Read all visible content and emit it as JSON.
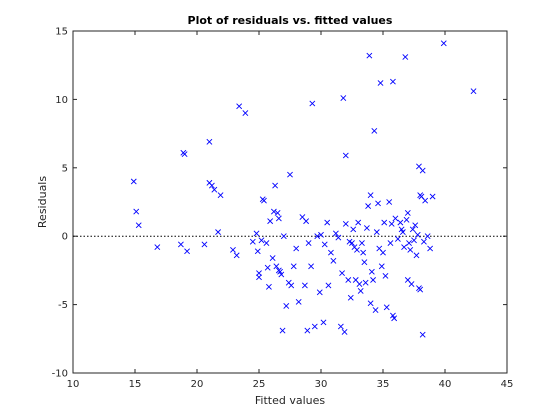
{
  "chart_data": {
    "type": "scatter",
    "title": "Plot of residuals vs. fitted values",
    "xlabel": "Fitted values",
    "ylabel": "Residuals",
    "xlim": [
      10,
      45
    ],
    "ylim": [
      -10,
      15
    ],
    "xticks": [
      10,
      15,
      20,
      25,
      30,
      35,
      40,
      45
    ],
    "yticks": [
      -10,
      -5,
      0,
      5,
      10,
      15
    ],
    "grid": false,
    "marker": "x",
    "marker_color": "#0000ff",
    "reference_line": {
      "y": 0,
      "style": "dotted",
      "color": "#000000"
    },
    "points": [
      {
        "x": 14.9,
        "y": 4.0
      },
      {
        "x": 15.1,
        "y": 1.8
      },
      {
        "x": 15.3,
        "y": 0.8
      },
      {
        "x": 16.8,
        "y": -0.8
      },
      {
        "x": 18.7,
        "y": -0.6
      },
      {
        "x": 18.9,
        "y": 6.1
      },
      {
        "x": 19.0,
        "y": 6.0
      },
      {
        "x": 19.2,
        "y": -1.1
      },
      {
        "x": 20.6,
        "y": -0.6
      },
      {
        "x": 21.0,
        "y": 6.9
      },
      {
        "x": 21.0,
        "y": 3.9
      },
      {
        "x": 21.2,
        "y": 3.7
      },
      {
        "x": 21.4,
        "y": 3.4
      },
      {
        "x": 21.7,
        "y": 0.3
      },
      {
        "x": 21.9,
        "y": 3.0
      },
      {
        "x": 22.9,
        "y": -1.0
      },
      {
        "x": 23.2,
        "y": -1.4
      },
      {
        "x": 23.4,
        "y": 9.5
      },
      {
        "x": 23.9,
        "y": 9.0
      },
      {
        "x": 24.5,
        "y": -0.4
      },
      {
        "x": 24.8,
        "y": 0.2
      },
      {
        "x": 24.9,
        "y": -1.1
      },
      {
        "x": 25.0,
        "y": -2.7
      },
      {
        "x": 25.0,
        "y": -3.0
      },
      {
        "x": 25.2,
        "y": -0.3
      },
      {
        "x": 25.3,
        "y": 2.7
      },
      {
        "x": 25.4,
        "y": 2.6
      },
      {
        "x": 25.6,
        "y": -0.5
      },
      {
        "x": 25.7,
        "y": -2.3
      },
      {
        "x": 25.8,
        "y": -3.7
      },
      {
        "x": 25.9,
        "y": 1.1
      },
      {
        "x": 26.1,
        "y": -1.6
      },
      {
        "x": 26.2,
        "y": 1.8
      },
      {
        "x": 26.3,
        "y": 3.7
      },
      {
        "x": 26.4,
        "y": -2.2
      },
      {
        "x": 26.5,
        "y": 1.7
      },
      {
        "x": 26.6,
        "y": 1.3
      },
      {
        "x": 26.6,
        "y": -2.5
      },
      {
        "x": 26.7,
        "y": -2.6
      },
      {
        "x": 26.8,
        "y": -2.8
      },
      {
        "x": 26.9,
        "y": -6.9
      },
      {
        "x": 27.0,
        "y": 0.0
      },
      {
        "x": 27.2,
        "y": -5.1
      },
      {
        "x": 27.4,
        "y": -3.4
      },
      {
        "x": 27.5,
        "y": 4.5
      },
      {
        "x": 27.6,
        "y": -3.6
      },
      {
        "x": 27.8,
        "y": -2.2
      },
      {
        "x": 28.0,
        "y": -0.9
      },
      {
        "x": 28.2,
        "y": -4.8
      },
      {
        "x": 28.5,
        "y": 1.4
      },
      {
        "x": 28.7,
        "y": -3.6
      },
      {
        "x": 28.8,
        "y": 1.1
      },
      {
        "x": 28.9,
        "y": -6.9
      },
      {
        "x": 29.0,
        "y": -0.5
      },
      {
        "x": 29.2,
        "y": -2.2
      },
      {
        "x": 29.3,
        "y": 9.7
      },
      {
        "x": 29.5,
        "y": -6.6
      },
      {
        "x": 29.7,
        "y": 0.0
      },
      {
        "x": 29.9,
        "y": -4.1
      },
      {
        "x": 30.0,
        "y": 0.1
      },
      {
        "x": 30.2,
        "y": -6.3
      },
      {
        "x": 30.3,
        "y": -0.6
      },
      {
        "x": 30.5,
        "y": 1.0
      },
      {
        "x": 30.6,
        "y": -3.6
      },
      {
        "x": 30.8,
        "y": -1.2
      },
      {
        "x": 31.0,
        "y": -1.8
      },
      {
        "x": 31.2,
        "y": 0.2
      },
      {
        "x": 31.4,
        "y": -0.1
      },
      {
        "x": 31.6,
        "y": -6.6
      },
      {
        "x": 31.7,
        "y": -2.7
      },
      {
        "x": 31.8,
        "y": 10.1
      },
      {
        "x": 31.9,
        "y": -7.0
      },
      {
        "x": 32.0,
        "y": 5.9
      },
      {
        "x": 32.0,
        "y": 0.9
      },
      {
        "x": 32.2,
        "y": -3.2
      },
      {
        "x": 32.3,
        "y": -0.4
      },
      {
        "x": 32.4,
        "y": -4.5
      },
      {
        "x": 32.5,
        "y": -0.5
      },
      {
        "x": 32.6,
        "y": 0.5
      },
      {
        "x": 32.7,
        "y": -0.8
      },
      {
        "x": 32.8,
        "y": -3.2
      },
      {
        "x": 32.9,
        "y": -1.0
      },
      {
        "x": 33.0,
        "y": 1.0
      },
      {
        "x": 33.1,
        "y": -3.5
      },
      {
        "x": 33.2,
        "y": -4.0
      },
      {
        "x": 33.3,
        "y": -0.5
      },
      {
        "x": 33.4,
        "y": -1.2
      },
      {
        "x": 33.5,
        "y": -1.9
      },
      {
        "x": 33.6,
        "y": -3.4
      },
      {
        "x": 33.7,
        "y": 0.6
      },
      {
        "x": 33.8,
        "y": 2.2
      },
      {
        "x": 33.9,
        "y": 13.2
      },
      {
        "x": 34.0,
        "y": -4.9
      },
      {
        "x": 34.0,
        "y": 3.0
      },
      {
        "x": 34.1,
        "y": -2.6
      },
      {
        "x": 34.2,
        "y": -3.2
      },
      {
        "x": 34.3,
        "y": 7.7
      },
      {
        "x": 34.4,
        "y": -5.4
      },
      {
        "x": 34.5,
        "y": 0.3
      },
      {
        "x": 34.6,
        "y": 2.4
      },
      {
        "x": 34.7,
        "y": -0.9
      },
      {
        "x": 34.8,
        "y": 11.2
      },
      {
        "x": 34.9,
        "y": -2.2
      },
      {
        "x": 35.0,
        "y": -1.2
      },
      {
        "x": 35.1,
        "y": 1.0
      },
      {
        "x": 35.2,
        "y": -2.9
      },
      {
        "x": 35.3,
        "y": -5.2
      },
      {
        "x": 35.5,
        "y": 2.5
      },
      {
        "x": 35.6,
        "y": -0.5
      },
      {
        "x": 35.7,
        "y": 0.9
      },
      {
        "x": 35.8,
        "y": 11.3
      },
      {
        "x": 35.8,
        "y": -5.8
      },
      {
        "x": 35.9,
        "y": -6.0
      },
      {
        "x": 36.0,
        "y": 1.3
      },
      {
        "x": 36.2,
        "y": -0.2
      },
      {
        "x": 36.4,
        "y": 1.0
      },
      {
        "x": 36.5,
        "y": 0.5
      },
      {
        "x": 36.6,
        "y": 0.3
      },
      {
        "x": 36.7,
        "y": -0.8
      },
      {
        "x": 36.8,
        "y": 13.1
      },
      {
        "x": 36.9,
        "y": 1.2
      },
      {
        "x": 37.0,
        "y": 1.7
      },
      {
        "x": 37.0,
        "y": -3.2
      },
      {
        "x": 37.1,
        "y": -0.5
      },
      {
        "x": 37.2,
        "y": -1.0
      },
      {
        "x": 37.3,
        "y": -3.5
      },
      {
        "x": 37.4,
        "y": 0.5
      },
      {
        "x": 37.5,
        "y": -0.3
      },
      {
        "x": 37.6,
        "y": 0.8
      },
      {
        "x": 37.7,
        "y": -1.4
      },
      {
        "x": 37.8,
        "y": 0.1
      },
      {
        "x": 37.9,
        "y": -3.8
      },
      {
        "x": 37.9,
        "y": 5.1
      },
      {
        "x": 38.0,
        "y": 3.0
      },
      {
        "x": 38.0,
        "y": -3.9
      },
      {
        "x": 38.1,
        "y": 2.9
      },
      {
        "x": 38.2,
        "y": -7.2
      },
      {
        "x": 38.2,
        "y": 4.8
      },
      {
        "x": 38.3,
        "y": -0.4
      },
      {
        "x": 38.4,
        "y": 2.6
      },
      {
        "x": 38.6,
        "y": 0.0
      },
      {
        "x": 38.8,
        "y": -0.9
      },
      {
        "x": 39.0,
        "y": 2.9
      },
      {
        "x": 39.9,
        "y": 14.1
      },
      {
        "x": 42.3,
        "y": 10.6
      }
    ]
  }
}
